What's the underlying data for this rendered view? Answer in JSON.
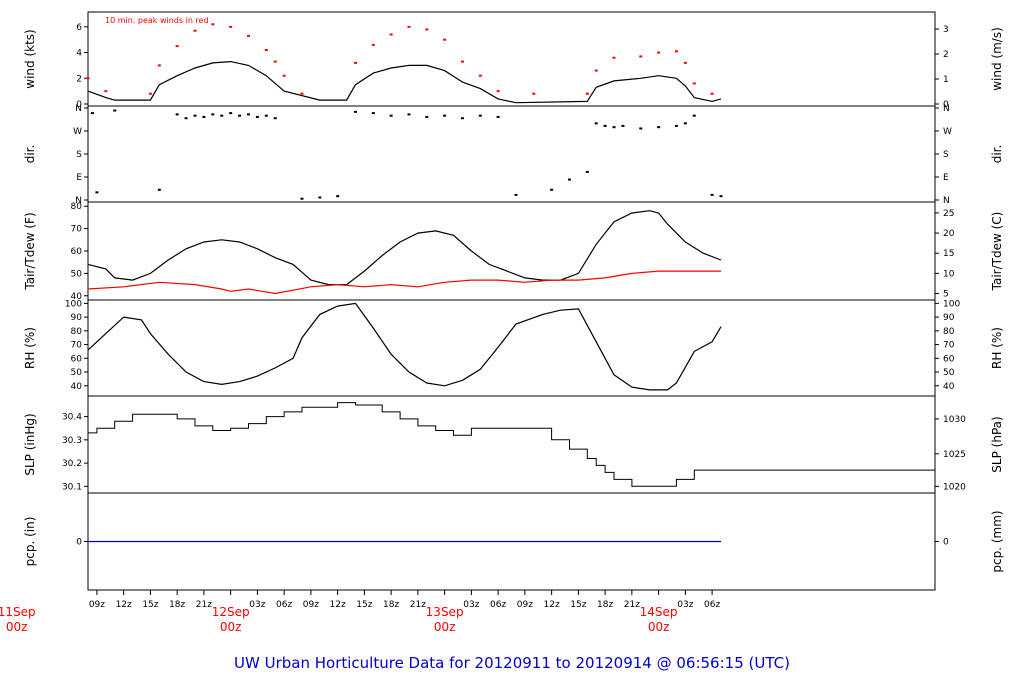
{
  "colors": {
    "axis": "#000000",
    "primary": "#000000",
    "secondary": "#ff0000",
    "title": "#0000cc",
    "date": "#ff0000",
    "precip": "#0000cc"
  },
  "chart_data": {
    "type": "line",
    "title": "UW Urban Horticulture Data for 20120911  to  20120914 @ 06:56:15  (UTC)",
    "x_range_hours": [
      -16,
      79
    ],
    "x_ticks": [
      {
        "h": -15,
        "label": "09z"
      },
      {
        "h": -12,
        "label": "12z"
      },
      {
        "h": -9,
        "label": "15z"
      },
      {
        "h": -6,
        "label": "18z"
      },
      {
        "h": -3,
        "label": "21z"
      },
      {
        "h": 3,
        "label": "03z"
      },
      {
        "h": 6,
        "label": "06z"
      },
      {
        "h": 9,
        "label": "09z"
      },
      {
        "h": 12,
        "label": "12z"
      },
      {
        "h": 15,
        "label": "15z"
      },
      {
        "h": 18,
        "label": "18z"
      },
      {
        "h": 21,
        "label": "21z"
      },
      {
        "h": 27,
        "label": "03z"
      },
      {
        "h": 30,
        "label": "06z"
      },
      {
        "h": 33,
        "label": "09z"
      },
      {
        "h": 36,
        "label": "12z"
      },
      {
        "h": 39,
        "label": "15z"
      },
      {
        "h": 42,
        "label": "18z"
      },
      {
        "h": 45,
        "label": "21z"
      },
      {
        "h": 51,
        "label": "03z"
      },
      {
        "h": 54,
        "label": "06z"
      }
    ],
    "date_ticks": [
      {
        "h": -24,
        "date": "11Sep",
        "z": "00z"
      },
      {
        "h": 0,
        "date": "12Sep",
        "z": "00z"
      },
      {
        "h": 24,
        "date": "13Sep",
        "z": "00z"
      },
      {
        "h": 48,
        "date": "14Sep",
        "z": "00z"
      }
    ],
    "panels": [
      {
        "id": "wind",
        "left_label": "wind (kts)",
        "right_label": "wind (m/s)",
        "annotation": "10 min. peak winds in red",
        "ylim": [
          0,
          7
        ],
        "left_ticks": [
          {
            "v": 0,
            "label": "0"
          },
          {
            "v": 2,
            "label": "2"
          },
          {
            "v": 4,
            "label": "4"
          },
          {
            "v": 6,
            "label": "6"
          }
        ],
        "right_ticks": [
          {
            "v": 0,
            "label": "0"
          },
          {
            "v": 1.944,
            "label": "1"
          },
          {
            "v": 3.888,
            "label": "2"
          },
          {
            "v": 5.832,
            "label": "3"
          }
        ],
        "series": [
          {
            "name": "wind speed (kts)",
            "color": "#000000",
            "style": "line",
            "x": [
              -16,
              -14,
              -13,
              -9,
              -8,
              -6,
              -4,
              -2,
              0,
              2,
              4,
              5,
              6,
              10,
              13,
              14,
              16,
              18,
              20,
              22,
              24,
              26,
              28,
              30,
              32,
              40,
              41,
              43,
              46,
              48,
              50,
              51,
              52,
              54,
              55
            ],
            "y": [
              1.0,
              0.5,
              0.3,
              0.3,
              1.5,
              2.2,
              2.8,
              3.2,
              3.3,
              3.0,
              2.2,
              1.6,
              1.0,
              0.3,
              0.3,
              1.5,
              2.4,
              2.8,
              3.0,
              3.0,
              2.6,
              1.7,
              1.2,
              0.4,
              0.1,
              0.2,
              1.3,
              1.8,
              2.0,
              2.2,
              2.0,
              1.4,
              0.5,
              0.2,
              0.4
            ]
          },
          {
            "name": "10 min. peak winds",
            "color": "#ff0000",
            "style": "dots",
            "x": [
              -16,
              -14,
              -9,
              -8,
              -6,
              -4,
              -2,
              0,
              2,
              4,
              5,
              6,
              8,
              14,
              16,
              18,
              20,
              22,
              24,
              26,
              28,
              30,
              34,
              40,
              41,
              43,
              46,
              48,
              50,
              51,
              52,
              54
            ],
            "y": [
              2.0,
              1.0,
              0.8,
              3.0,
              4.5,
              5.7,
              6.2,
              6.0,
              5.3,
              4.2,
              3.3,
              2.2,
              0.8,
              3.2,
              4.6,
              5.4,
              6.0,
              5.8,
              5.0,
              3.3,
              2.2,
              1.0,
              0.8,
              0.8,
              2.6,
              3.6,
              3.7,
              4.0,
              4.1,
              3.2,
              1.6,
              0.8
            ]
          }
        ]
      },
      {
        "id": "dir",
        "left_label": "dir.",
        "right_label": "dir.",
        "ylim": [
          0,
          360
        ],
        "left_ticks": [
          {
            "v": 0,
            "label": "N"
          },
          {
            "v": 90,
            "label": "E"
          },
          {
            "v": 180,
            "label": "S"
          },
          {
            "v": 270,
            "label": "W"
          },
          {
            "v": 360,
            "label": "N"
          }
        ],
        "right_ticks": [
          {
            "v": 0,
            "label": "N"
          },
          {
            "v": 90,
            "label": "E"
          },
          {
            "v": 180,
            "label": "S"
          },
          {
            "v": 270,
            "label": "W"
          },
          {
            "v": 360,
            "label": "N"
          }
        ],
        "series": [
          {
            "name": "wind direction (deg)",
            "color": "#000000",
            "style": "scatter",
            "x": [
              -15.5,
              -15,
              -13,
              -8,
              -6,
              -5,
              -4,
              -3,
              -2,
              -1,
              0,
              1,
              2,
              3,
              4,
              5,
              8,
              10,
              12,
              14,
              16,
              18,
              20,
              22,
              24,
              26,
              28,
              30,
              32,
              36,
              38,
              40,
              41,
              42,
              43,
              44,
              46,
              48,
              50,
              51,
              52,
              54,
              55
            ],
            "y": [
              340,
              30,
              350,
              40,
              335,
              320,
              330,
              325,
              335,
              330,
              340,
              330,
              335,
              325,
              330,
              320,
              5,
              10,
              15,
              345,
              340,
              330,
              335,
              325,
              330,
              320,
              330,
              325,
              20,
              40,
              80,
              110,
              300,
              290,
              285,
              290,
              280,
              285,
              290,
              300,
              330,
              20,
              15
            ]
          }
        ]
      },
      {
        "id": "temp",
        "left_label": "Tair/Tdew (F)",
        "right_label": "Tair/Tdew (C)",
        "ylim": [
          39,
          81
        ],
        "left_ticks": [
          {
            "v": 40,
            "label": "40"
          },
          {
            "v": 50,
            "label": "50"
          },
          {
            "v": 60,
            "label": "60"
          },
          {
            "v": 70,
            "label": "70"
          },
          {
            "v": 80,
            "label": "80"
          }
        ],
        "right_ticks": [
          {
            "v": 41,
            "label": "5"
          },
          {
            "v": 50,
            "label": "10"
          },
          {
            "v": 59,
            "label": "15"
          },
          {
            "v": 68,
            "label": "20"
          },
          {
            "v": 77,
            "label": "25"
          }
        ],
        "series": [
          {
            "name": "Tair (F)",
            "color": "#000000",
            "style": "line",
            "x": [
              -16,
              -14,
              -13,
              -11,
              -9,
              -7,
              -5,
              -3,
              -1,
              1,
              3,
              5,
              7,
              9,
              11,
              13,
              15,
              17,
              19,
              21,
              23,
              25,
              27,
              29,
              31,
              33,
              35,
              37,
              39,
              41,
              43,
              45,
              47,
              48,
              49,
              51,
              53,
              55
            ],
            "y": [
              54,
              52,
              48,
              47,
              50,
              56,
              61,
              64,
              65,
              64,
              61,
              57,
              54,
              47,
              45,
              45,
              51,
              58,
              64,
              68,
              69,
              67,
              60,
              54,
              51,
              48,
              47,
              47,
              50,
              63,
              73,
              77,
              78,
              77,
              72,
              64,
              59,
              56
            ]
          },
          {
            "name": "Tdew (F)",
            "color": "#ff0000",
            "style": "line",
            "x": [
              -16,
              -12,
              -8,
              -4,
              -1,
              0,
              2,
              5,
              9,
              12,
              15,
              18,
              21,
              24,
              27,
              30,
              33,
              36,
              39,
              42,
              45,
              48,
              51,
              55
            ],
            "y": [
              43,
              44,
              46,
              45,
              43,
              42,
              43,
              41,
              44,
              45,
              44,
              45,
              44,
              46,
              47,
              47,
              46,
              47,
              47,
              48,
              50,
              51,
              51,
              51
            ]
          }
        ]
      },
      {
        "id": "rh",
        "left_label": "RH (%)",
        "right_label": "RH (%)",
        "ylim": [
          34,
          101
        ],
        "left_ticks": [
          {
            "v": 40,
            "label": "40"
          },
          {
            "v": 50,
            "label": "50"
          },
          {
            "v": 60,
            "label": "60"
          },
          {
            "v": 70,
            "label": "70"
          },
          {
            "v": 80,
            "label": "80"
          },
          {
            "v": 90,
            "label": "90"
          },
          {
            "v": 100,
            "label": "100"
          }
        ],
        "right_ticks": [
          {
            "v": 40,
            "label": "40"
          },
          {
            "v": 50,
            "label": "50"
          },
          {
            "v": 60,
            "label": "60"
          },
          {
            "v": 70,
            "label": "70"
          },
          {
            "v": 80,
            "label": "80"
          },
          {
            "v": 90,
            "label": "90"
          },
          {
            "v": 100,
            "label": "100"
          }
        ],
        "series": [
          {
            "name": "RH (%)",
            "color": "#000000",
            "style": "line",
            "x": [
              -16,
              -14,
              -12,
              -10,
              -9,
              -7,
              -5,
              -3,
              -1,
              1,
              3,
              5,
              7,
              8,
              10,
              12,
              14,
              16,
              18,
              20,
              22,
              24,
              26,
              28,
              30,
              32,
              35,
              37,
              39,
              41,
              43,
              45,
              47,
              49,
              50,
              52,
              54,
              55
            ],
            "y": [
              66,
              78,
              90,
              88,
              78,
              63,
              50,
              43,
              41,
              43,
              47,
              53,
              60,
              75,
              92,
              98,
              100,
              82,
              63,
              50,
              42,
              40,
              44,
              52,
              68,
              85,
              92,
              95,
              96,
              72,
              48,
              39,
              37,
              37,
              42,
              65,
              72,
              83
            ]
          }
        ]
      },
      {
        "id": "slp",
        "left_label": "SLP (inHg)",
        "right_label": "SLP (hPa)",
        "ylim": [
          30.08,
          30.48
        ],
        "left_ticks": [
          {
            "v": 30.1,
            "label": "30.1"
          },
          {
            "v": 30.2,
            "label": "30.2"
          },
          {
            "v": 30.3,
            "label": "30.3"
          },
          {
            "v": 30.4,
            "label": "30.4"
          }
        ],
        "right_ticks": [
          {
            "v": 30.1,
            "label": "1020"
          },
          {
            "v": 30.24,
            "label": "1025"
          },
          {
            "v": 30.39,
            "label": "1030"
          }
        ],
        "series": [
          {
            "name": "SLP (inHg)",
            "color": "#000000",
            "style": "step",
            "x": [
              -16,
              -15,
              -13,
              -11,
              -6,
              -4,
              -2,
              0,
              2,
              4,
              6,
              8,
              12,
              14,
              17,
              19,
              21,
              23,
              25,
              27,
              30,
              34,
              36,
              38,
              40,
              41,
              42,
              43,
              45,
              47,
              50,
              52,
              55
            ],
            "y": [
              30.33,
              30.35,
              30.38,
              30.41,
              30.39,
              30.36,
              30.34,
              30.35,
              30.37,
              30.4,
              30.42,
              30.44,
              30.46,
              30.45,
              30.42,
              30.39,
              30.36,
              30.34,
              30.32,
              30.35,
              30.35,
              30.35,
              30.3,
              30.26,
              30.22,
              30.19,
              30.16,
              30.13,
              30.1,
              30.1,
              30.13,
              30.17,
              30.17
            ]
          }
        ]
      },
      {
        "id": "pcp",
        "left_label": "pcp. (in)",
        "right_label": "pcp. (mm)",
        "ylim": [
          -1,
          1
        ],
        "left_ticks": [
          {
            "v": 0,
            "label": "0"
          }
        ],
        "right_ticks": [
          {
            "v": 0,
            "label": "0"
          }
        ],
        "series": [
          {
            "name": "precipitation (in)",
            "color": "#0000cc",
            "style": "line",
            "x": [
              -16,
              55
            ],
            "y": [
              0,
              0
            ]
          }
        ]
      }
    ]
  }
}
